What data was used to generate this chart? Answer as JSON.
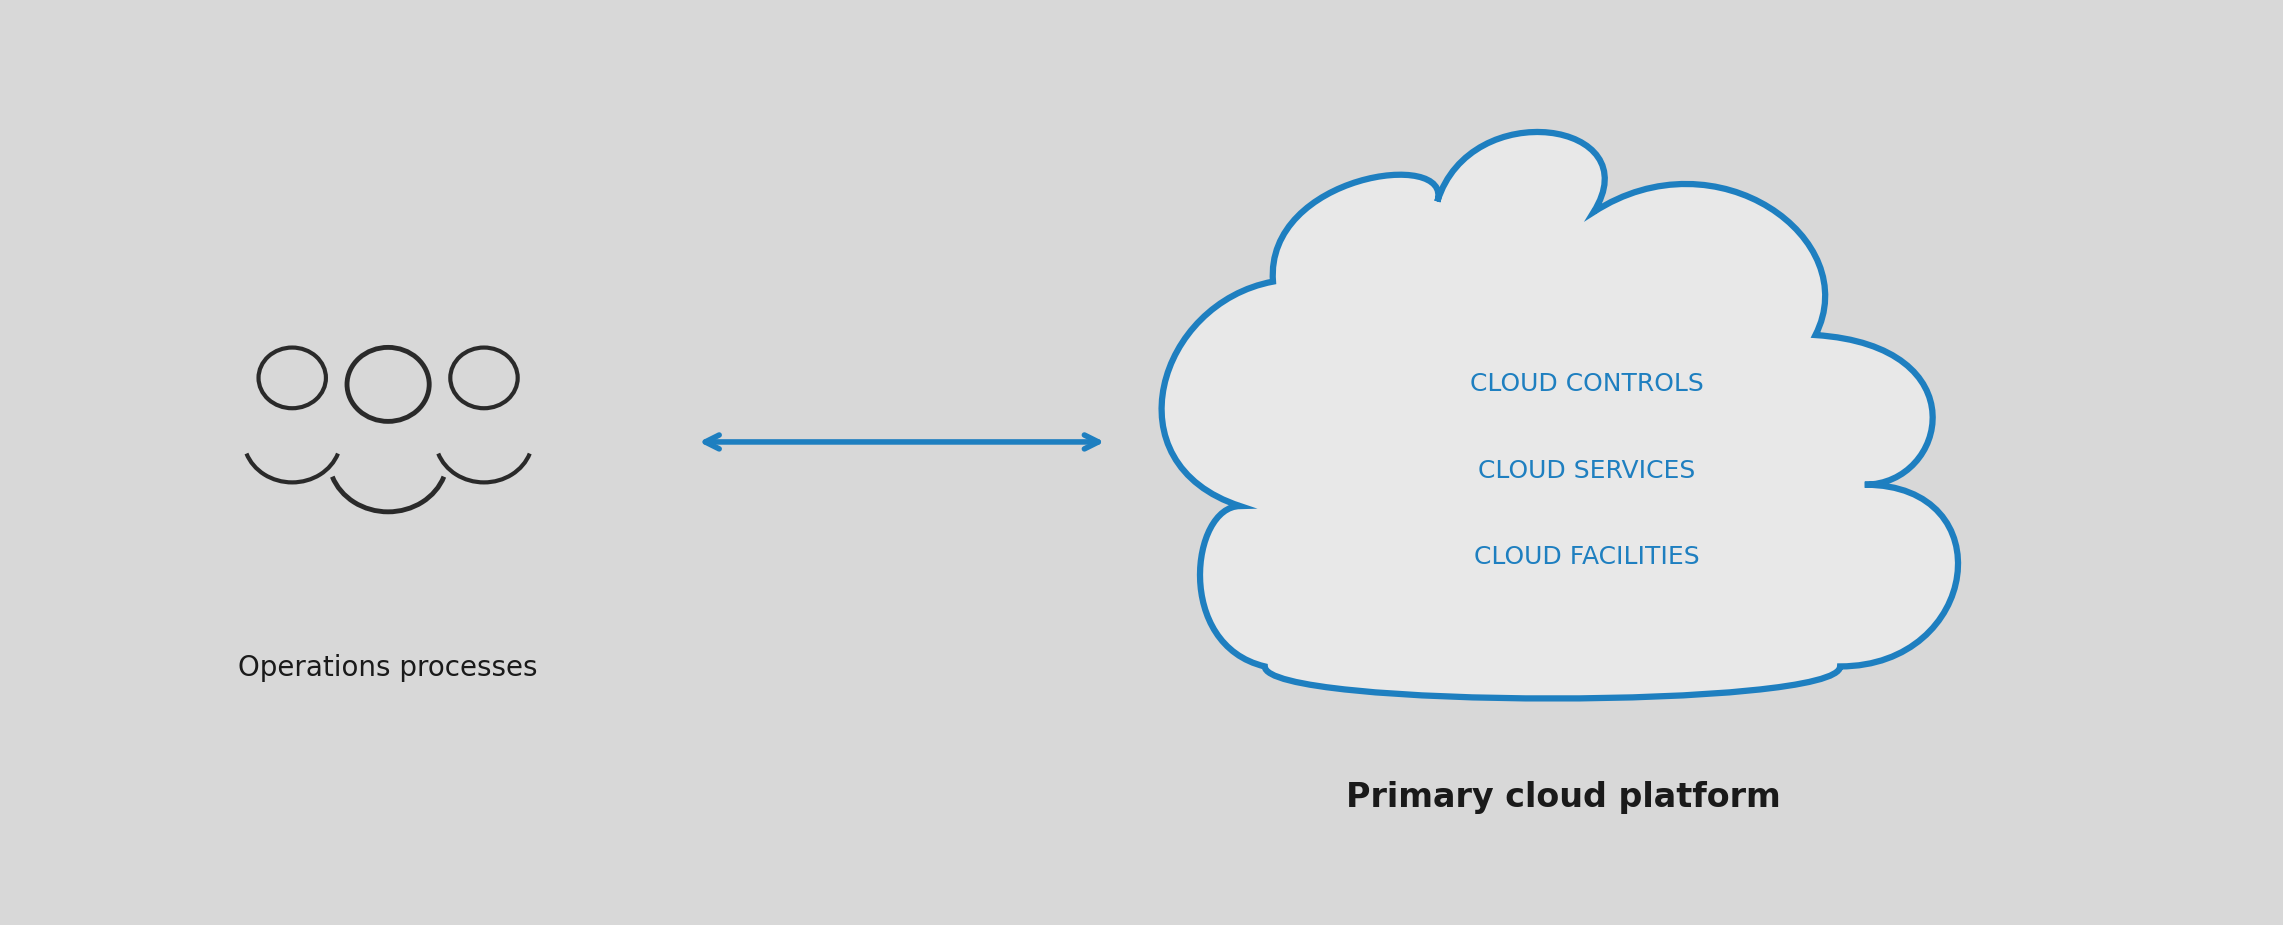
{
  "background_color": "#D8D8D8",
  "cloud_fill": "#E8E8E8",
  "cloud_stroke": "#1E7FC0",
  "cloud_linewidth": 4.5,
  "arrow_color": "#1E7FC0",
  "arrow_linewidth": 4.0,
  "person_color": "#2A2A2A",
  "person_linewidth": 3.5,
  "cloud_text_color": "#1E7FC0",
  "label_color": "#1A1A1A",
  "cloud_lines": [
    "CLOUD CONTROLS",
    "CLOUD SERVICES",
    "CLOUD FACILITIES"
  ],
  "cloud_text_fontsize": 18,
  "ops_label": "Operations processes",
  "ops_label_fontsize": 20,
  "platform_label": "Primary cloud platform",
  "platform_label_fontsize": 24,
  "figsize": [
    22.83,
    9.25
  ],
  "dpi": 100
}
